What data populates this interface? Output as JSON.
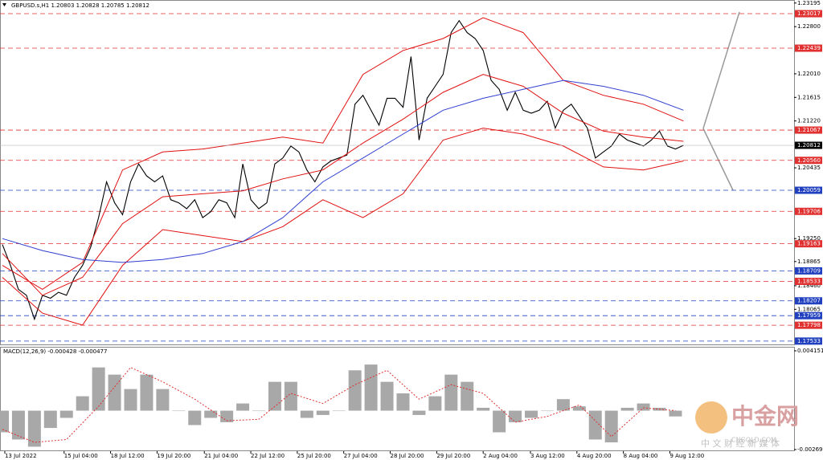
{
  "header": "GBPUSD.s,H1  1.20803 1.20828 1.20785 1.20812",
  "watermark": {
    "logo": "中金网",
    "site": "CNGOLD.COM",
    "slogan": "中 文 财 经 新 媒 体"
  },
  "chart_data": [
    {
      "type": "line",
      "xlim": [
        -0.3,
        98.8
      ],
      "ylim": [
        1.17464,
        1.23246
      ],
      "yticks": [
        1.23195,
        {
          "value": 1.228,
          "label": "1.22800"
        },
        {
          "value": 1.2201,
          "label": "1.22010"
        },
        1.21615,
        {
          "value": 1.2122,
          "label": "1.21220"
        },
        1.20435,
        {
          "value": 1.1925,
          "label": "1.19250"
        },
        1.18865,
        {
          "value": 1.1846,
          "label": "1.18460"
        },
        1.18065
      ],
      "levels": [
        {
          "value": 1.23017,
          "label": "1.23017",
          "color": "#e03030"
        },
        {
          "value": 1.22439,
          "label": "1.22439",
          "color": "#e03030"
        },
        {
          "value": 1.21067,
          "label": "1.21067",
          "color": "#e03030"
        },
        {
          "value": 1.2056,
          "label": "1.20560",
          "color": "#e03030"
        },
        {
          "value": 1.20059,
          "label": "1.20059",
          "color": "#2040c0"
        },
        {
          "value": 1.19706,
          "label": "1.19706",
          "color": "#e03030"
        },
        {
          "value": 1.19163,
          "label": "1.19163",
          "color": "#e03030"
        },
        {
          "value": 1.18709,
          "label": "1.18709",
          "color": "#2040c0"
        },
        {
          "value": 1.18533,
          "label": "1.18533",
          "color": "#e03030"
        },
        {
          "value": 1.18207,
          "label": "1.18207",
          "color": "#2040c0"
        },
        {
          "value": 1.17959,
          "label": "1.17959",
          "color": "#2040c0"
        },
        {
          "value": 1.17798,
          "label": "1.17798",
          "color": "#e03030"
        },
        {
          "value": 1.17533,
          "label": "1.17533",
          "color": "#2040c0"
        }
      ],
      "price_label": 1.20812,
      "series": [
        {
          "color": "#000000",
          "x": [
            0,
            1,
            2,
            3,
            4,
            5,
            6,
            7,
            8,
            9,
            10,
            11,
            12,
            13,
            14,
            15,
            16,
            17,
            18,
            19,
            20,
            21,
            22,
            23,
            24,
            25,
            26,
            27,
            28,
            29,
            30,
            31,
            32,
            33,
            34,
            35,
            36,
            37,
            38,
            39,
            40,
            41,
            42,
            43,
            44,
            45,
            46,
            47,
            48,
            49,
            50,
            51,
            52,
            53,
            54,
            55,
            56,
            57,
            58,
            59,
            60,
            61,
            62,
            63,
            64,
            65,
            66,
            67,
            68,
            69,
            70,
            71,
            72,
            73,
            74,
            75,
            76,
            77,
            78,
            79,
            80,
            81,
            82,
            83,
            84,
            85
          ],
          "values": [
            1.1915,
            1.188,
            1.184,
            1.183,
            1.179,
            1.183,
            1.1825,
            1.1835,
            1.183,
            1.186,
            1.188,
            1.191,
            1.196,
            1.202,
            1.1985,
            1.1965,
            1.202,
            1.205,
            1.203,
            1.202,
            1.203,
            1.199,
            1.1985,
            1.1975,
            1.199,
            1.196,
            1.197,
            1.199,
            1.1985,
            1.196,
            1.205,
            1.199,
            1.1975,
            1.1985,
            1.205,
            1.206,
            1.208,
            1.207,
            1.204,
            1.202,
            1.2045,
            1.2055,
            1.206,
            1.2065,
            1.215,
            1.2165,
            1.214,
            1.2115,
            1.216,
            1.216,
            1.2145,
            1.223,
            1.209,
            1.216,
            1.218,
            1.22,
            1.227,
            1.229,
            1.227,
            1.226,
            1.224,
            1.219,
            1.2175,
            1.214,
            1.217,
            1.214,
            1.2135,
            1.214,
            1.2155,
            1.211,
            1.214,
            1.215,
            1.213,
            1.211,
            1.206,
            1.207,
            1.208,
            1.21,
            1.209,
            1.2085,
            1.208,
            1.209,
            1.2105,
            1.208,
            1.2075,
            1.20812
          ]
        },
        {
          "color": "#e01010",
          "x": [
            0,
            5,
            10,
            15,
            20,
            25,
            30,
            35,
            40,
            45,
            50,
            55,
            60,
            65,
            70,
            75,
            80,
            85
          ],
          "values": [
            1.188,
            1.184,
            1.1885,
            1.204,
            1.207,
            1.2075,
            1.2085,
            1.2095,
            1.2085,
            1.22,
            1.224,
            1.226,
            1.2295,
            1.227,
            1.219,
            1.2165,
            1.215,
            1.2122
          ]
        },
        {
          "color": "#e01010",
          "x": [
            0,
            5,
            10,
            15,
            20,
            25,
            30,
            35,
            40,
            45,
            50,
            55,
            60,
            65,
            70,
            75,
            80,
            85
          ],
          "values": [
            1.19,
            1.183,
            1.186,
            1.195,
            1.1995,
            1.2,
            1.2005,
            1.2025,
            1.204,
            1.2085,
            1.2125,
            1.217,
            1.22,
            1.218,
            1.2135,
            1.2105,
            1.2095,
            1.2088
          ]
        },
        {
          "color": "#e01010",
          "x": [
            0,
            5,
            10,
            15,
            20,
            25,
            30,
            35,
            40,
            45,
            50,
            55,
            60,
            65,
            70,
            75,
            80,
            85
          ],
          "values": [
            1.186,
            1.18,
            1.178,
            1.188,
            1.194,
            1.193,
            1.192,
            1.1945,
            1.199,
            1.196,
            1.2,
            1.209,
            1.211,
            1.21,
            1.208,
            1.2045,
            1.204,
            1.2055
          ]
        },
        {
          "color": "#3040d0",
          "x": [
            0,
            5,
            10,
            15,
            20,
            25,
            30,
            35,
            40,
            45,
            50,
            55,
            60,
            65,
            70,
            75,
            80,
            85
          ],
          "values": [
            1.1925,
            1.1905,
            1.189,
            1.1885,
            1.189,
            1.19,
            1.192,
            1.196,
            1.202,
            1.206,
            1.21,
            1.214,
            1.216,
            1.2175,
            1.219,
            1.218,
            1.2165,
            1.214
          ]
        }
      ]
    },
    {
      "type": "bar",
      "title": "MACD(12,26,9) -0.000428 -0.000477",
      "xlim": [
        -0.3,
        98.8
      ],
      "ylim": [
        -0.00281,
        0.00443
      ],
      "yticks": [
        0.004151,
        -0.002699
      ],
      "color": "#a8a8a8",
      "x": [
        0,
        2,
        4,
        6,
        8,
        10,
        12,
        14,
        16,
        18,
        20,
        22,
        24,
        26,
        28,
        30,
        32,
        34,
        36,
        38,
        40,
        42,
        44,
        46,
        48,
        50,
        52,
        54,
        56,
        58,
        60,
        62,
        64,
        66,
        68,
        70,
        72,
        74,
        76,
        78,
        80,
        82,
        84
      ],
      "values": [
        -0.0015,
        -0.002,
        -0.0025,
        -0.0012,
        -0.0005,
        0.001,
        0.003,
        0.0025,
        0.0015,
        0.0025,
        0.0015,
        0.0,
        -0.001,
        -0.0005,
        -0.0008,
        0.0005,
        0.0,
        0.002,
        0.002,
        -0.0005,
        -0.0003,
        0.0,
        0.0028,
        0.0032,
        0.002,
        0.0012,
        -0.0003,
        0.001,
        0.0025,
        0.002,
        0.0002,
        -0.0015,
        -0.0008,
        -0.0005,
        0.0,
        0.0008,
        0.0003,
        -0.002,
        -0.0022,
        0.0002,
        0.0005,
        0.0002,
        -0.0004
      ],
      "signal": {
        "color": "#e03030",
        "x": [
          0,
          4,
          8,
          12,
          16,
          20,
          24,
          28,
          32,
          36,
          40,
          44,
          48,
          52,
          56,
          60,
          64,
          68,
          72,
          76,
          80,
          84
        ],
        "values": [
          -0.0013,
          -0.0022,
          -0.002,
          0.0003,
          0.003,
          0.002,
          0.0008,
          -0.0007,
          -0.0006,
          0.0012,
          0.0005,
          0.0018,
          0.0028,
          0.0008,
          0.0018,
          0.0012,
          -0.0008,
          -0.0004,
          0.0004,
          -0.0018,
          0.0002,
          0.0
        ]
      },
      "xticks": [
        {
          "value": 0.3,
          "label": "13 Jul 2022"
        },
        {
          "value": 7.7,
          "label": "15 Jul 04:00"
        },
        {
          "value": 13.5,
          "label": "18 Jul 12:00"
        },
        {
          "value": 19.3,
          "label": "19 Jul 20:00"
        },
        {
          "value": 25.2,
          "label": "21 Jul 04:00"
        },
        {
          "value": 31,
          "label": "22 Jul 12:00"
        },
        {
          "value": 36.8,
          "label": "25 Jul 20:00"
        },
        {
          "value": 42.6,
          "label": "27 Jul 04:00"
        },
        {
          "value": 48.4,
          "label": "28 Jul 20:00"
        },
        {
          "value": 54.2,
          "label": "29 Jul 20:00"
        },
        {
          "value": 60,
          "label": "2 Aug 04:00"
        },
        {
          "value": 65.9,
          "label": "3 Aug 12:00"
        },
        {
          "value": 71.7,
          "label": "4 Aug 20:00"
        },
        {
          "value": 77.5,
          "label": "8 Aug 04:00"
        },
        {
          "value": 83.3,
          "label": "9 Aug 12:00"
        }
      ]
    }
  ]
}
